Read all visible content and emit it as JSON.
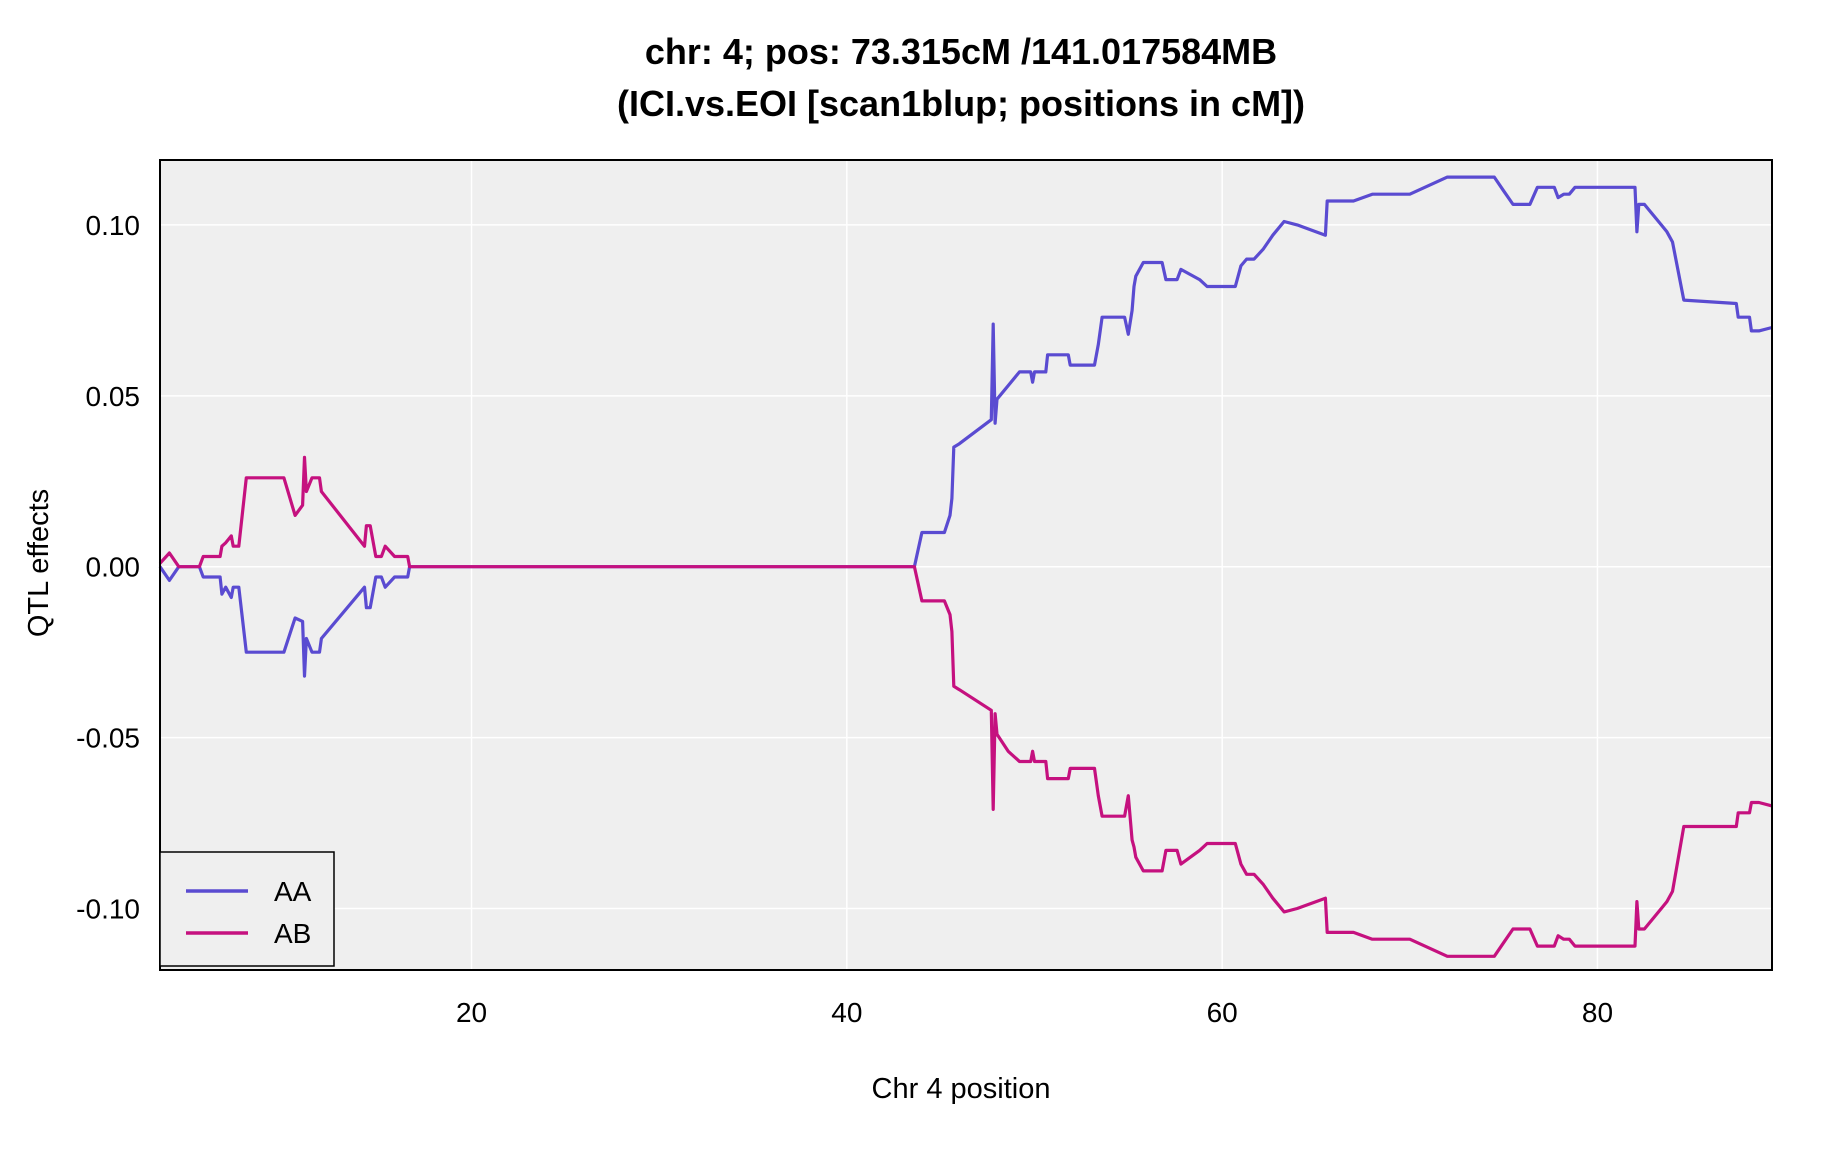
{
  "chart_data": {
    "type": "line",
    "title": "chr: 4; pos: 73.315cM /141.017584MB",
    "subtitle": "(ICI.vs.EOI [scan1blup; positions in cM])",
    "xlabel": "Chr 4 position",
    "ylabel": "QTL effects",
    "xlim": [
      3.4,
      89.3
    ],
    "ylim": [
      -0.118,
      0.119
    ],
    "x_ticks": [
      20,
      40,
      60,
      80
    ],
    "y_ticks": [
      0.1,
      0.05,
      0.0,
      -0.05,
      -0.1
    ],
    "x_tick_labels": [
      "20",
      "40",
      "60",
      "80"
    ],
    "y_tick_labels": [
      "0.10",
      "0.05",
      "0.00",
      "-0.05",
      "-0.10"
    ],
    "grid": true,
    "legend_position": "bottom-left",
    "colors": {
      "AA": "#5a4bd1",
      "AB": "#c5117f",
      "panel_bg": "#efefef",
      "grid": "#ffffff"
    },
    "series": [
      {
        "name": "AA",
        "color": "#5a4bd1",
        "points": [
          [
            3.4,
            0.0
          ],
          [
            3.9,
            -0.004
          ],
          [
            4.4,
            0.0
          ],
          [
            5.5,
            0.0
          ],
          [
            5.7,
            -0.003
          ],
          [
            6.6,
            -0.003
          ],
          [
            6.7,
            -0.008
          ],
          [
            6.9,
            -0.006
          ],
          [
            7.2,
            -0.009
          ],
          [
            7.3,
            -0.006
          ],
          [
            7.6,
            -0.006
          ],
          [
            8.0,
            -0.025
          ],
          [
            9.5,
            -0.025
          ],
          [
            10.0,
            -0.025
          ],
          [
            10.6,
            -0.015
          ],
          [
            11.0,
            -0.016
          ],
          [
            11.1,
            -0.032
          ],
          [
            11.2,
            -0.021
          ],
          [
            11.5,
            -0.025
          ],
          [
            11.9,
            -0.025
          ],
          [
            12.0,
            -0.021
          ],
          [
            14.3,
            -0.006
          ],
          [
            14.4,
            -0.012
          ],
          [
            14.6,
            -0.012
          ],
          [
            14.9,
            -0.003
          ],
          [
            15.2,
            -0.003
          ],
          [
            15.4,
            -0.006
          ],
          [
            15.9,
            -0.003
          ],
          [
            16.6,
            -0.003
          ],
          [
            16.7,
            0.0
          ],
          [
            43.6,
            0.0
          ],
          [
            44.0,
            0.01
          ],
          [
            45.2,
            0.01
          ],
          [
            45.5,
            0.015
          ],
          [
            45.6,
            0.02
          ],
          [
            45.7,
            0.035
          ],
          [
            46.0,
            0.036
          ],
          [
            47.7,
            0.043
          ],
          [
            47.8,
            0.071
          ],
          [
            47.9,
            0.042
          ],
          [
            48.0,
            0.049
          ],
          [
            48.6,
            0.053
          ],
          [
            49.2,
            0.057
          ],
          [
            49.8,
            0.057
          ],
          [
            49.9,
            0.054
          ],
          [
            50.0,
            0.057
          ],
          [
            50.6,
            0.057
          ],
          [
            50.7,
            0.062
          ],
          [
            51.8,
            0.062
          ],
          [
            51.9,
            0.059
          ],
          [
            52.2,
            0.059
          ],
          [
            52.4,
            0.059
          ],
          [
            53.2,
            0.059
          ],
          [
            53.4,
            0.065
          ],
          [
            53.6,
            0.073
          ],
          [
            54.8,
            0.073
          ],
          [
            55.0,
            0.068
          ],
          [
            55.2,
            0.075
          ],
          [
            55.3,
            0.082
          ],
          [
            55.4,
            0.085
          ],
          [
            55.8,
            0.089
          ],
          [
            56.8,
            0.089
          ],
          [
            57.0,
            0.084
          ],
          [
            57.6,
            0.084
          ],
          [
            57.8,
            0.087
          ],
          [
            58.8,
            0.084
          ],
          [
            59.2,
            0.082
          ],
          [
            60.7,
            0.082
          ],
          [
            61.0,
            0.088
          ],
          [
            61.3,
            0.09
          ],
          [
            61.7,
            0.09
          ],
          [
            62.2,
            0.093
          ],
          [
            62.7,
            0.097
          ],
          [
            63.3,
            0.101
          ],
          [
            64.0,
            0.1
          ],
          [
            65.5,
            0.097
          ],
          [
            65.6,
            0.107
          ],
          [
            67.0,
            0.107
          ],
          [
            68.0,
            0.109
          ],
          [
            70.0,
            0.109
          ],
          [
            72.0,
            0.114
          ],
          [
            74.5,
            0.114
          ],
          [
            75.0,
            0.11
          ],
          [
            75.5,
            0.106
          ],
          [
            76.4,
            0.106
          ],
          [
            76.8,
            0.111
          ],
          [
            77.7,
            0.111
          ],
          [
            77.9,
            0.108
          ],
          [
            78.2,
            0.109
          ],
          [
            78.5,
            0.109
          ],
          [
            78.8,
            0.111
          ],
          [
            81.5,
            0.111
          ],
          [
            81.7,
            0.111
          ],
          [
            82.0,
            0.111
          ],
          [
            82.1,
            0.098
          ],
          [
            82.2,
            0.106
          ],
          [
            82.5,
            0.106
          ],
          [
            83.4,
            0.1
          ],
          [
            83.7,
            0.098
          ],
          [
            84.0,
            0.095
          ],
          [
            84.6,
            0.078
          ],
          [
            87.4,
            0.077
          ],
          [
            87.5,
            0.073
          ],
          [
            88.1,
            0.073
          ],
          [
            88.2,
            0.069
          ],
          [
            88.6,
            0.069
          ],
          [
            89.3,
            0.07
          ]
        ]
      },
      {
        "name": "AB",
        "color": "#c5117f",
        "points": [
          [
            3.4,
            0.001
          ],
          [
            3.9,
            0.004
          ],
          [
            4.4,
            0.0
          ],
          [
            5.5,
            0.0
          ],
          [
            5.7,
            0.003
          ],
          [
            6.6,
            0.003
          ],
          [
            6.7,
            0.006
          ],
          [
            6.9,
            0.007
          ],
          [
            7.2,
            0.009
          ],
          [
            7.3,
            0.006
          ],
          [
            7.6,
            0.006
          ],
          [
            8.0,
            0.026
          ],
          [
            9.5,
            0.026
          ],
          [
            10.0,
            0.026
          ],
          [
            10.6,
            0.015
          ],
          [
            11.0,
            0.018
          ],
          [
            11.1,
            0.032
          ],
          [
            11.2,
            0.022
          ],
          [
            11.5,
            0.026
          ],
          [
            11.9,
            0.026
          ],
          [
            12.0,
            0.022
          ],
          [
            14.3,
            0.006
          ],
          [
            14.4,
            0.012
          ],
          [
            14.6,
            0.012
          ],
          [
            14.9,
            0.003
          ],
          [
            15.2,
            0.003
          ],
          [
            15.4,
            0.006
          ],
          [
            15.9,
            0.003
          ],
          [
            16.6,
            0.003
          ],
          [
            16.7,
            0.0
          ],
          [
            43.6,
            0.0
          ],
          [
            44.0,
            -0.01
          ],
          [
            45.2,
            -0.01
          ],
          [
            45.5,
            -0.014
          ],
          [
            45.6,
            -0.019
          ],
          [
            45.7,
            -0.035
          ],
          [
            46.0,
            -0.036
          ],
          [
            47.7,
            -0.042
          ],
          [
            47.8,
            -0.071
          ],
          [
            47.9,
            -0.043
          ],
          [
            48.0,
            -0.049
          ],
          [
            48.6,
            -0.054
          ],
          [
            49.2,
            -0.057
          ],
          [
            49.8,
            -0.057
          ],
          [
            49.9,
            -0.054
          ],
          [
            50.0,
            -0.057
          ],
          [
            50.6,
            -0.057
          ],
          [
            50.7,
            -0.062
          ],
          [
            51.8,
            -0.062
          ],
          [
            51.9,
            -0.059
          ],
          [
            52.2,
            -0.059
          ],
          [
            52.4,
            -0.059
          ],
          [
            53.2,
            -0.059
          ],
          [
            53.4,
            -0.067
          ],
          [
            53.6,
            -0.073
          ],
          [
            54.8,
            -0.073
          ],
          [
            55.0,
            -0.067
          ],
          [
            55.2,
            -0.08
          ],
          [
            55.3,
            -0.082
          ],
          [
            55.4,
            -0.085
          ],
          [
            55.8,
            -0.089
          ],
          [
            56.8,
            -0.089
          ],
          [
            57.0,
            -0.083
          ],
          [
            57.6,
            -0.083
          ],
          [
            57.8,
            -0.087
          ],
          [
            58.8,
            -0.083
          ],
          [
            59.2,
            -0.081
          ],
          [
            60.7,
            -0.081
          ],
          [
            61.0,
            -0.087
          ],
          [
            61.3,
            -0.09
          ],
          [
            61.7,
            -0.09
          ],
          [
            62.2,
            -0.093
          ],
          [
            62.7,
            -0.097
          ],
          [
            63.3,
            -0.101
          ],
          [
            64.0,
            -0.1
          ],
          [
            65.5,
            -0.097
          ],
          [
            65.6,
            -0.107
          ],
          [
            67.0,
            -0.107
          ],
          [
            68.0,
            -0.109
          ],
          [
            70.0,
            -0.109
          ],
          [
            72.0,
            -0.114
          ],
          [
            74.5,
            -0.114
          ],
          [
            75.0,
            -0.11
          ],
          [
            75.5,
            -0.106
          ],
          [
            76.4,
            -0.106
          ],
          [
            76.8,
            -0.111
          ],
          [
            77.7,
            -0.111
          ],
          [
            77.9,
            -0.108
          ],
          [
            78.2,
            -0.109
          ],
          [
            78.5,
            -0.109
          ],
          [
            78.8,
            -0.111
          ],
          [
            81.5,
            -0.111
          ],
          [
            81.7,
            -0.111
          ],
          [
            82.0,
            -0.111
          ],
          [
            82.1,
            -0.098
          ],
          [
            82.2,
            -0.106
          ],
          [
            82.5,
            -0.106
          ],
          [
            83.4,
            -0.1
          ],
          [
            83.7,
            -0.098
          ],
          [
            84.0,
            -0.095
          ],
          [
            84.6,
            -0.076
          ],
          [
            87.4,
            -0.076
          ],
          [
            87.5,
            -0.072
          ],
          [
            88.1,
            -0.072
          ],
          [
            88.2,
            -0.069
          ],
          [
            88.6,
            -0.069
          ],
          [
            89.3,
            -0.07
          ]
        ]
      }
    ]
  }
}
